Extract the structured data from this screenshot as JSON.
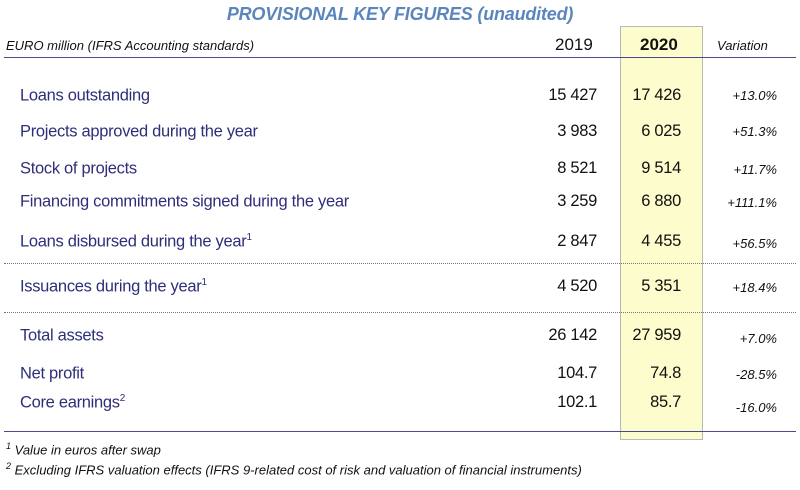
{
  "title": "PROVISIONAL KEY FIGURES (unaudited)",
  "header": {
    "unit": "EURO million (IFRS Accounting standards)",
    "col_2019": "2019",
    "col_2020": "2020",
    "col_variation": "Variation"
  },
  "highlight_color": "#fdfccc",
  "rows": [
    {
      "label": "Loans outstanding",
      "sup": "",
      "v2019": "15 427",
      "v2020": "17 426",
      "variation": "+13.0%"
    },
    {
      "label": "Projects approved during the year",
      "sup": "",
      "v2019": "3 983",
      "v2020": "6 025",
      "variation": "+51.3%"
    },
    {
      "label": "Stock of projects",
      "sup": "",
      "v2019": "8 521",
      "v2020": "9 514",
      "variation": "+11.7%"
    },
    {
      "label": "Financing commitments signed during the year",
      "sup": "",
      "v2019": "3 259",
      "v2020": "6 880",
      "variation": "+111.1%"
    },
    {
      "label": "Loans disbursed during the year",
      "sup": "1",
      "v2019": "2 847",
      "v2020": "4 455",
      "variation": "+56.5%"
    },
    {
      "label": "Issuances during the year",
      "sup": "1",
      "v2019": "4 520",
      "v2020": "5 351",
      "variation": "+18.4%"
    },
    {
      "label": "Total assets",
      "sup": "",
      "v2019": "26 142",
      "v2020": "27 959",
      "variation": "+7.0%"
    },
    {
      "label": "Net profit",
      "sup": "",
      "v2019": "104.7",
      "v2020": "74.8",
      "variation": "-28.5%"
    },
    {
      "label": "Core earnings",
      "sup": "2",
      "v2019": "102.1",
      "v2020": "85.7",
      "variation": "-16.0%"
    }
  ],
  "footnotes": [
    {
      "mark": "1",
      "text": "Value in euros after swap"
    },
    {
      "mark": "2",
      "text": "Excluding IFRS valuation effects (IFRS 9-related cost of risk and valuation of financial instruments)"
    }
  ]
}
